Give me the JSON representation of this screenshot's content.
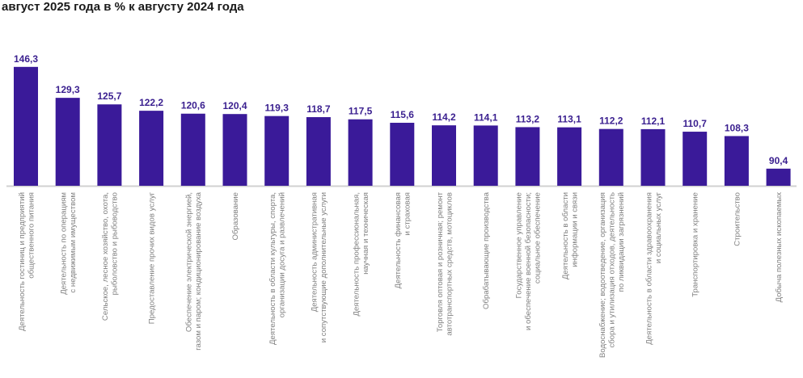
{
  "chart_data": {
    "type": "bar",
    "title": "август 2025 года в % к августу 2024 года",
    "xlabel": "",
    "ylabel": "",
    "ylim": [
      81,
      150
    ],
    "grid": false,
    "bar_color": "#3a1a99",
    "label_color": "#3a1f8f",
    "categories": [
      [
        "Деятельность гостиниц и предприятий",
        "общественного питания"
      ],
      [
        "Деятельность по операциям",
        "с недвижимым имуществом"
      ],
      [
        "Сельское, лесное хозяйство, охота,",
        "рыболовство и рыбоводство"
      ],
      [
        "Предоставление прочих видов услуг"
      ],
      [
        "Обеспечение электрической энергией,",
        "газом и паром; кондиционирование воздуха"
      ],
      [
        "Образование"
      ],
      [
        "Деятельность в области культуры, спорта,",
        "организации досуга и развлечений"
      ],
      [
        "Деятельность административная",
        "и сопутствующие дополнительные услуги"
      ],
      [
        "Деятельность профессиональная,",
        "научная и техническая"
      ],
      [
        "Деятельность финансовая",
        "и страховая"
      ],
      [
        "Торговля оптовая и розничная; ремонт",
        "автотранспортных средств, мотоциклов"
      ],
      [
        "Обрабатывающие производства"
      ],
      [
        "Государственное управление",
        "и обеспечение военной безопасности;",
        "социальное обеспечение"
      ],
      [
        "Деятельность в области",
        "информации и связи"
      ],
      [
        "Водоснабжение; водоотведение, организация",
        "сбора и утилизация отходов, деятельность",
        "по ликвидации загрязнений"
      ],
      [
        "Деятельность в области здравоохранения",
        "и социальных услуг"
      ],
      [
        "Транспортировка и хранение"
      ],
      [
        "Строительство"
      ],
      [
        "Добыча полезных ископаемых"
      ]
    ],
    "values": [
      146.3,
      129.3,
      125.7,
      122.2,
      120.6,
      120.4,
      119.3,
      118.7,
      117.5,
      115.6,
      114.2,
      114.1,
      113.2,
      113.1,
      112.2,
      112.1,
      110.7,
      108.3,
      90.4
    ],
    "value_labels": [
      "146,3",
      "129,3",
      "125,7",
      "122,2",
      "120,6",
      "120,4",
      "119,3",
      "118,7",
      "117,5",
      "115,6",
      "114,2",
      "114,1",
      "113,2",
      "113,1",
      "112,2",
      "112,1",
      "110,7",
      "108,3",
      "90,4"
    ]
  }
}
